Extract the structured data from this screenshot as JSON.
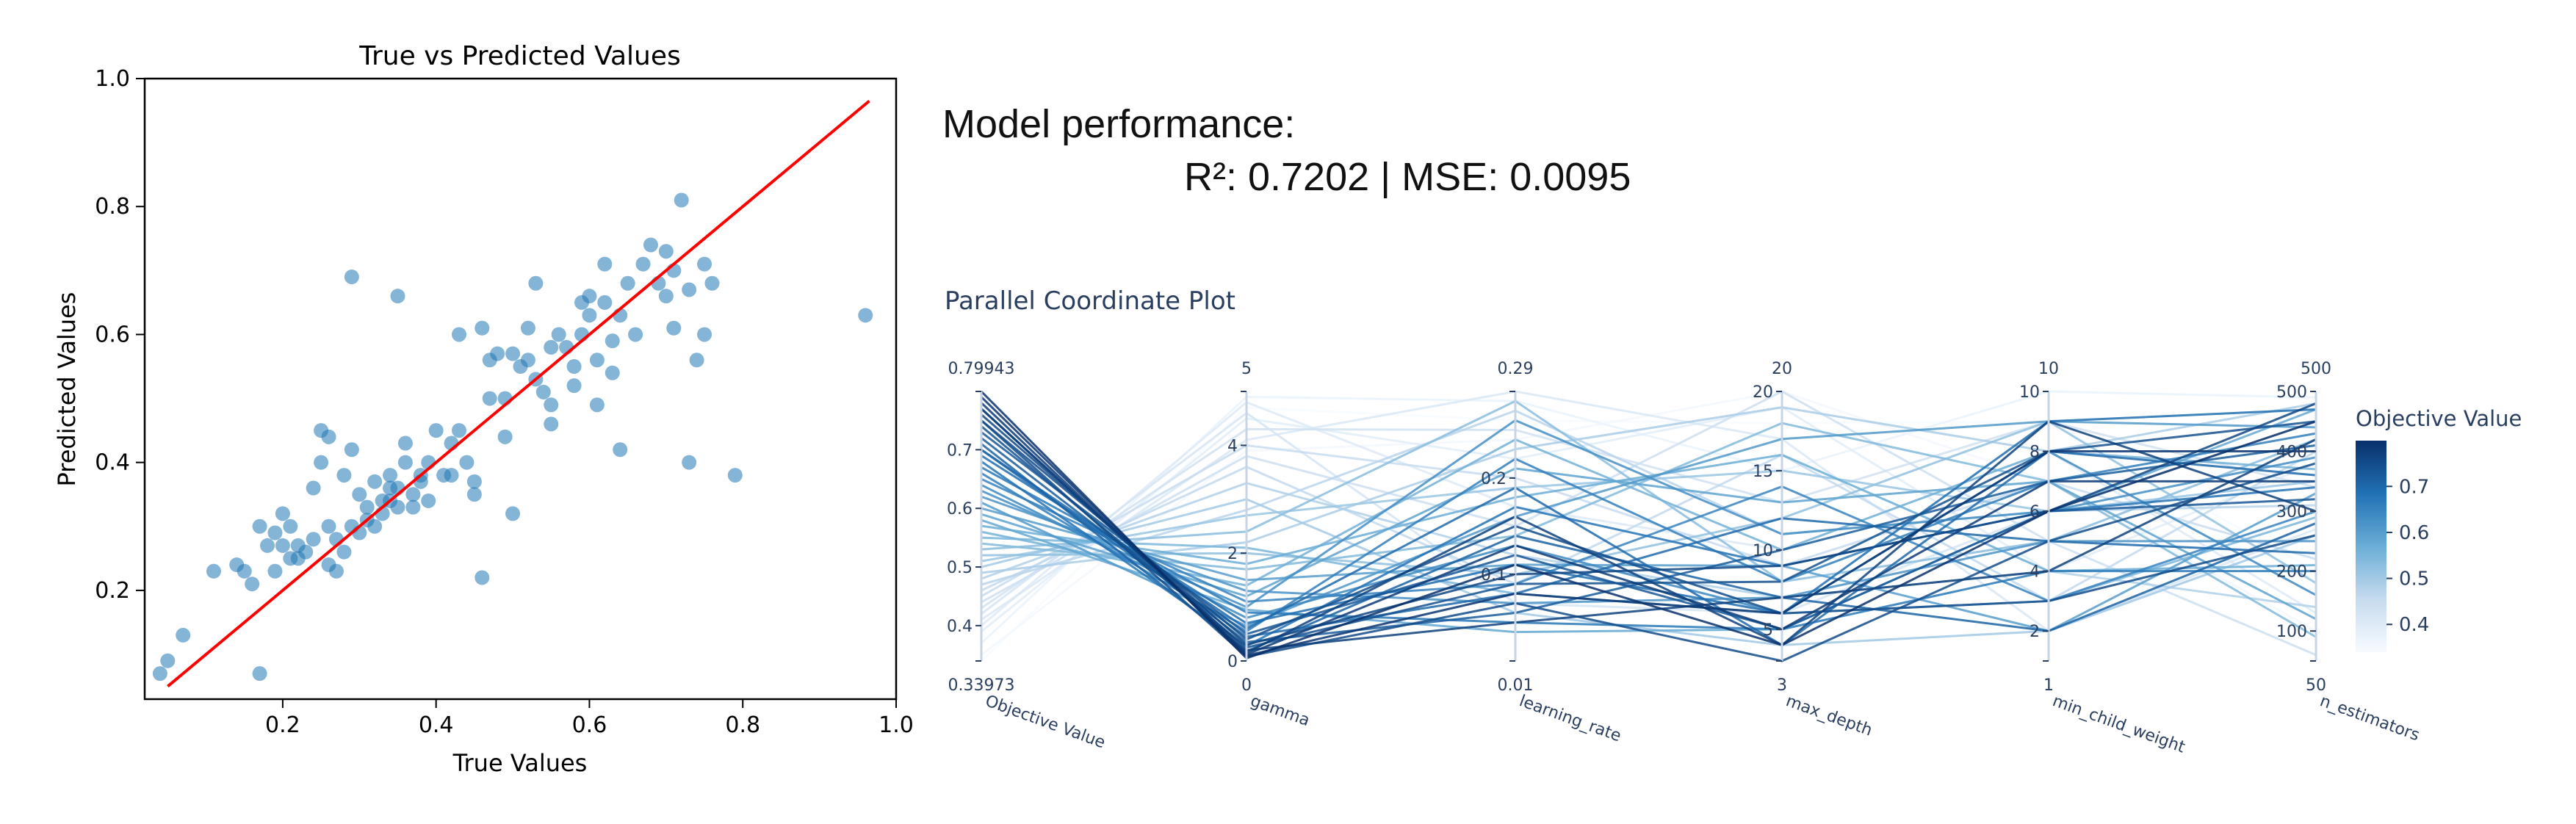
{
  "performance": {
    "heading": "Model performance:",
    "metrics": "R²: 0.7202 | MSE: 0.0095"
  },
  "chart_data": [
    {
      "type": "scatter",
      "title": "True vs Predicted Values",
      "xlabel": "True Values",
      "ylabel": "Predicted Values",
      "xlim": [
        0.02,
        1.0
      ],
      "ylim": [
        0.03,
        1.0
      ],
      "xticks": [
        0.2,
        0.4,
        0.6,
        0.8,
        1.0
      ],
      "xtick_labels": [
        "0.2",
        "0.4",
        "0.6",
        "0.8",
        "1.0"
      ],
      "yticks": [
        0.2,
        0.4,
        0.6,
        0.8,
        1.0
      ],
      "ytick_labels": [
        "0.2",
        "0.4",
        "0.6",
        "0.8",
        "1.0"
      ],
      "grid": false,
      "point_color": "#1f77b4",
      "reference_line": {
        "from": [
          0.05,
          0.05
        ],
        "to": [
          0.965,
          0.965
        ],
        "color": "#ff0000"
      },
      "points": [
        [
          0.04,
          0.07
        ],
        [
          0.05,
          0.09
        ],
        [
          0.07,
          0.13
        ],
        [
          0.11,
          0.23
        ],
        [
          0.14,
          0.24
        ],
        [
          0.15,
          0.23
        ],
        [
          0.16,
          0.21
        ],
        [
          0.17,
          0.07
        ],
        [
          0.17,
          0.3
        ],
        [
          0.18,
          0.27
        ],
        [
          0.19,
          0.23
        ],
        [
          0.19,
          0.29
        ],
        [
          0.2,
          0.32
        ],
        [
          0.2,
          0.27
        ],
        [
          0.21,
          0.3
        ],
        [
          0.21,
          0.25
        ],
        [
          0.22,
          0.27
        ],
        [
          0.22,
          0.25
        ],
        [
          0.23,
          0.26
        ],
        [
          0.24,
          0.28
        ],
        [
          0.24,
          0.36
        ],
        [
          0.25,
          0.45
        ],
        [
          0.25,
          0.4
        ],
        [
          0.26,
          0.44
        ],
        [
          0.26,
          0.3
        ],
        [
          0.26,
          0.24
        ],
        [
          0.27,
          0.23
        ],
        [
          0.27,
          0.28
        ],
        [
          0.28,
          0.26
        ],
        [
          0.28,
          0.38
        ],
        [
          0.29,
          0.3
        ],
        [
          0.29,
          0.69
        ],
        [
          0.29,
          0.42
        ],
        [
          0.3,
          0.29
        ],
        [
          0.3,
          0.35
        ],
        [
          0.31,
          0.31
        ],
        [
          0.31,
          0.33
        ],
        [
          0.32,
          0.37
        ],
        [
          0.32,
          0.3
        ],
        [
          0.33,
          0.32
        ],
        [
          0.33,
          0.34
        ],
        [
          0.34,
          0.36
        ],
        [
          0.34,
          0.34
        ],
        [
          0.34,
          0.38
        ],
        [
          0.35,
          0.36
        ],
        [
          0.35,
          0.33
        ],
        [
          0.35,
          0.66
        ],
        [
          0.36,
          0.43
        ],
        [
          0.36,
          0.4
        ],
        [
          0.37,
          0.35
        ],
        [
          0.37,
          0.33
        ],
        [
          0.38,
          0.37
        ],
        [
          0.38,
          0.38
        ],
        [
          0.39,
          0.34
        ],
        [
          0.39,
          0.4
        ],
        [
          0.4,
          0.45
        ],
        [
          0.41,
          0.38
        ],
        [
          0.42,
          0.38
        ],
        [
          0.42,
          0.43
        ],
        [
          0.43,
          0.45
        ],
        [
          0.43,
          0.6
        ],
        [
          0.44,
          0.4
        ],
        [
          0.45,
          0.37
        ],
        [
          0.45,
          0.35
        ],
        [
          0.46,
          0.61
        ],
        [
          0.46,
          0.22
        ],
        [
          0.47,
          0.5
        ],
        [
          0.47,
          0.56
        ],
        [
          0.48,
          0.57
        ],
        [
          0.49,
          0.5
        ],
        [
          0.49,
          0.44
        ],
        [
          0.5,
          0.32
        ],
        [
          0.5,
          0.57
        ],
        [
          0.51,
          0.55
        ],
        [
          0.52,
          0.56
        ],
        [
          0.52,
          0.61
        ],
        [
          0.53,
          0.53
        ],
        [
          0.53,
          0.68
        ],
        [
          0.54,
          0.51
        ],
        [
          0.55,
          0.46
        ],
        [
          0.55,
          0.49
        ],
        [
          0.55,
          0.58
        ],
        [
          0.56,
          0.6
        ],
        [
          0.57,
          0.58
        ],
        [
          0.58,
          0.55
        ],
        [
          0.58,
          0.52
        ],
        [
          0.59,
          0.6
        ],
        [
          0.59,
          0.65
        ],
        [
          0.6,
          0.63
        ],
        [
          0.6,
          0.66
        ],
        [
          0.61,
          0.49
        ],
        [
          0.61,
          0.56
        ],
        [
          0.62,
          0.71
        ],
        [
          0.62,
          0.65
        ],
        [
          0.63,
          0.59
        ],
        [
          0.63,
          0.54
        ],
        [
          0.64,
          0.63
        ],
        [
          0.64,
          0.42
        ],
        [
          0.65,
          0.68
        ],
        [
          0.66,
          0.6
        ],
        [
          0.67,
          0.71
        ],
        [
          0.68,
          0.74
        ],
        [
          0.69,
          0.68
        ],
        [
          0.7,
          0.73
        ],
        [
          0.7,
          0.66
        ],
        [
          0.71,
          0.61
        ],
        [
          0.71,
          0.7
        ],
        [
          0.72,
          0.81
        ],
        [
          0.73,
          0.4
        ],
        [
          0.73,
          0.67
        ],
        [
          0.74,
          0.56
        ],
        [
          0.75,
          0.6
        ],
        [
          0.75,
          0.71
        ],
        [
          0.76,
          0.68
        ],
        [
          0.79,
          0.38
        ],
        [
          0.96,
          0.63
        ]
      ]
    },
    {
      "type": "parallel_coordinates",
      "title": "Parallel Coordinate Plot",
      "colorbar_title": "Objective Value",
      "colorscale": [
        "#f7fbff",
        "#08306b"
      ],
      "color_range": [
        0.33973,
        0.79943
      ],
      "colorbar_ticks": [
        0.4,
        0.5,
        0.6,
        0.7
      ],
      "colorbar_tick_labels": [
        "0.4",
        "0.5",
        "0.6",
        "0.7"
      ],
      "axes": [
        {
          "label": "Objective Value",
          "range": [
            0.33973,
            0.79943
          ],
          "range_labels": [
            "0.33973",
            "0.79943"
          ],
          "ticks": [
            0.4,
            0.5,
            0.6,
            0.7
          ],
          "tick_labels": [
            "0.4",
            "0.5",
            "0.6",
            "0.7"
          ]
        },
        {
          "label": "gamma",
          "range": [
            0,
            5
          ],
          "range_labels": [
            "0",
            "5"
          ],
          "ticks": [
            0,
            2,
            4
          ],
          "tick_labels": [
            "0",
            "2",
            "4"
          ]
        },
        {
          "label": "learning_rate",
          "range": [
            0.01,
            0.29
          ],
          "range_labels": [
            "0.01",
            "0.29"
          ],
          "ticks": [
            0.1,
            0.2
          ],
          "tick_labels": [
            "0.1",
            "0.2"
          ]
        },
        {
          "label": "max_depth",
          "range": [
            3,
            20
          ],
          "range_labels": [
            "3",
            "20"
          ],
          "ticks": [
            5,
            10,
            15,
            20
          ],
          "tick_labels": [
            "5",
            "10",
            "15",
            "20"
          ]
        },
        {
          "label": "min_child_weight",
          "range": [
            1,
            10
          ],
          "range_labels": [
            "1",
            "10"
          ],
          "ticks": [
            2,
            4,
            6,
            8,
            10
          ],
          "tick_labels": [
            "2",
            "4",
            "6",
            "8",
            "10"
          ]
        },
        {
          "label": "n_estimators",
          "range": [
            50,
            500
          ],
          "range_labels": [
            "50",
            "500"
          ],
          "ticks": [
            100,
            200,
            300,
            400,
            500
          ],
          "tick_labels": [
            "100",
            "200",
            "300",
            "400",
            "500"
          ]
        }
      ],
      "trials": [
        [
          0.79943,
          0.05,
          0.11,
          4,
          6,
          450
        ],
        [
          0.79,
          0.1,
          0.08,
          6,
          8,
          400
        ],
        [
          0.78,
          0.12,
          0.13,
          5,
          7,
          350
        ],
        [
          0.77,
          0.2,
          0.05,
          7,
          4,
          420
        ],
        [
          0.77,
          0.15,
          0.16,
          4,
          9,
          300
        ],
        [
          0.76,
          0.3,
          0.1,
          9,
          6,
          480
        ],
        [
          0.75,
          0.08,
          0.07,
          3,
          5,
          380
        ],
        [
          0.75,
          0.4,
          0.15,
          6,
          3,
          260
        ],
        [
          0.74,
          0.25,
          0.09,
          8,
          8,
          450
        ],
        [
          0.73,
          0.5,
          0.12,
          5,
          6,
          320
        ],
        [
          0.72,
          0.35,
          0.06,
          10,
          7,
          410
        ],
        [
          0.71,
          0.18,
          0.14,
          7,
          2,
          280
        ],
        [
          0.7,
          0.6,
          0.19,
          4,
          8,
          360
        ],
        [
          0.7,
          0.45,
          0.08,
          12,
          5,
          230
        ],
        [
          0.69,
          0.7,
          0.11,
          6,
          9,
          470
        ],
        [
          0.68,
          0.28,
          0.17,
          9,
          6,
          340
        ],
        [
          0.67,
          0.9,
          0.05,
          5,
          4,
          200
        ],
        [
          0.66,
          0.55,
          0.22,
          8,
          7,
          430
        ],
        [
          0.65,
          1.1,
          0.09,
          14,
          3,
          300
        ],
        [
          0.64,
          0.8,
          0.13,
          6,
          8,
          160
        ],
        [
          0.63,
          1.0,
          0.26,
          11,
          6,
          390
        ],
        [
          0.62,
          1.3,
          0.07,
          7,
          5,
          250
        ],
        [
          0.61,
          0.65,
          0.16,
          17,
          9,
          440
        ],
        [
          0.6,
          1.5,
          0.11,
          9,
          2,
          330
        ],
        [
          0.59,
          1.2,
          0.21,
          13,
          7,
          120
        ],
        [
          0.58,
          0.95,
          0.04,
          5,
          6,
          470
        ],
        [
          0.57,
          1.8,
          0.18,
          16,
          4,
          210
        ],
        [
          0.56,
          1.4,
          0.24,
          10,
          8,
          370
        ],
        [
          0.55,
          2.1,
          0.08,
          6,
          3,
          290
        ],
        [
          0.54,
          1.7,
          0.14,
          18,
          7,
          90
        ],
        [
          0.53,
          2.4,
          0.28,
          8,
          5,
          420
        ],
        [
          0.52,
          2.0,
          0.1,
          12,
          9,
          180
        ],
        [
          0.51,
          2.7,
          0.19,
          15,
          6,
          350
        ],
        [
          0.5,
          3.0,
          0.06,
          4,
          2,
          260
        ],
        [
          0.49,
          2.2,
          0.23,
          19,
          8,
          480
        ],
        [
          0.48,
          3.3,
          0.12,
          7,
          4,
          140
        ],
        [
          0.47,
          2.8,
          0.27,
          11,
          6,
          310
        ],
        [
          0.46,
          3.6,
          0.09,
          16,
          3,
          400
        ],
        [
          0.45,
          4.0,
          0.2,
          9,
          7,
          220
        ],
        [
          0.44,
          3.8,
          0.15,
          20,
          5,
          60
        ],
        [
          0.43,
          4.3,
          0.25,
          13,
          9,
          340
        ],
        [
          0.42,
          4.6,
          0.07,
          6,
          6,
          450
        ],
        [
          0.41,
          4.1,
          0.29,
          17,
          2,
          270
        ],
        [
          0.4,
          4.8,
          0.17,
          10,
          8,
          130
        ],
        [
          0.39,
          4.5,
          0.22,
          19,
          4,
          380
        ],
        [
          0.37,
          4.9,
          0.28,
          15,
          10,
          490
        ],
        [
          0.35,
          3.9,
          0.24,
          20,
          7,
          100
        ],
        [
          0.33973,
          4.7,
          0.26,
          18,
          9,
          200
        ]
      ]
    }
  ]
}
